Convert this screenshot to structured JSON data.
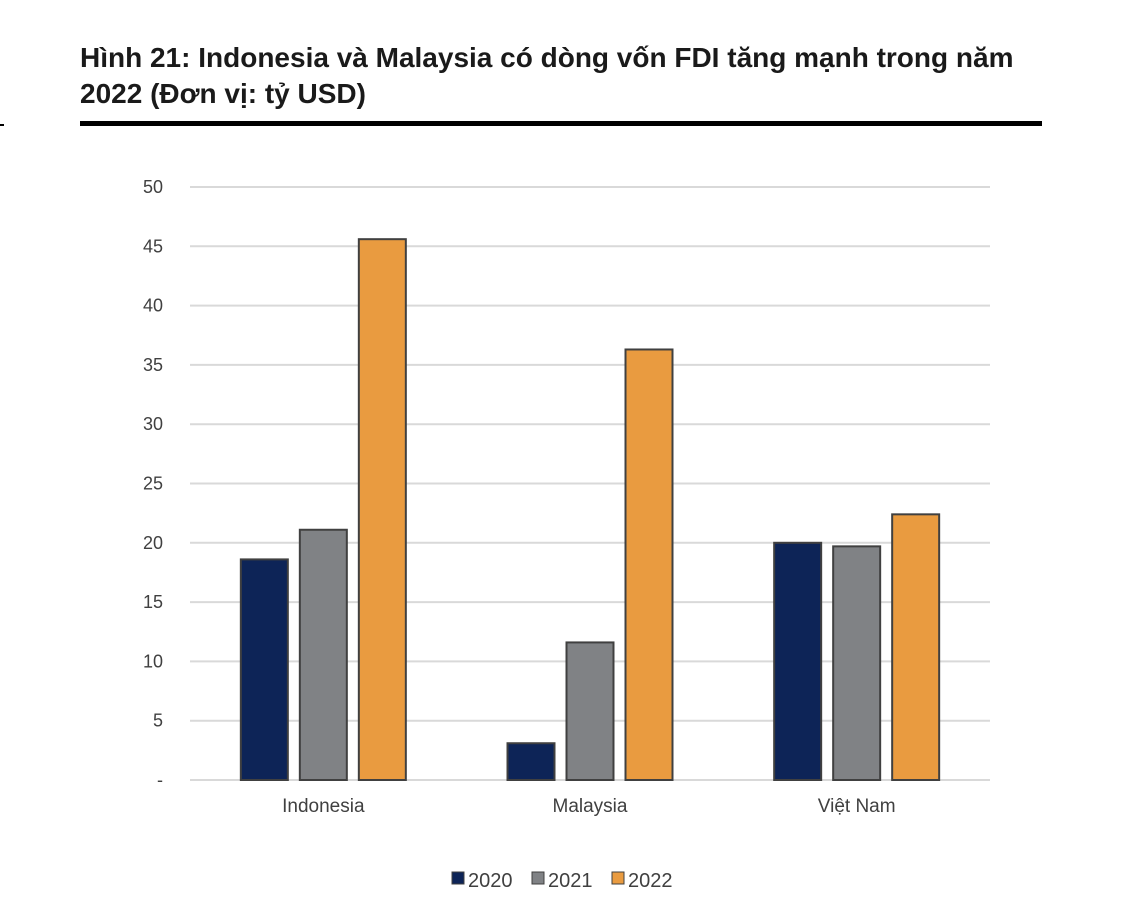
{
  "title": "Hình 21: Indonesia và Malaysia có dòng vốn FDI tăng mạnh trong năm 2022 (Đơn vị: tỷ USD)",
  "chart_data": {
    "type": "bar",
    "title": "Hình 21: Indonesia và Malaysia có dòng vốn FDI tăng mạnh trong năm 2022 (Đơn vị: tỷ USD)",
    "categories": [
      "Indonesia",
      "Malaysia",
      "Việt Nam"
    ],
    "series": [
      {
        "name": "2020",
        "color": "#0d2457",
        "values": [
          18.6,
          3.1,
          20.0
        ]
      },
      {
        "name": "2021",
        "color": "#808285",
        "values": [
          21.1,
          11.6,
          19.7
        ]
      },
      {
        "name": "2022",
        "color": "#e99b40",
        "values": [
          45.6,
          36.3,
          22.4
        ]
      }
    ],
    "yticks": [
      "-",
      "5",
      "10",
      "15",
      "20",
      "25",
      "30",
      "35",
      "40",
      "45",
      "50"
    ],
    "ylim": [
      0,
      50
    ],
    "xlabel": "",
    "ylabel": "",
    "grid": true,
    "legend_position": "bottom-center"
  }
}
